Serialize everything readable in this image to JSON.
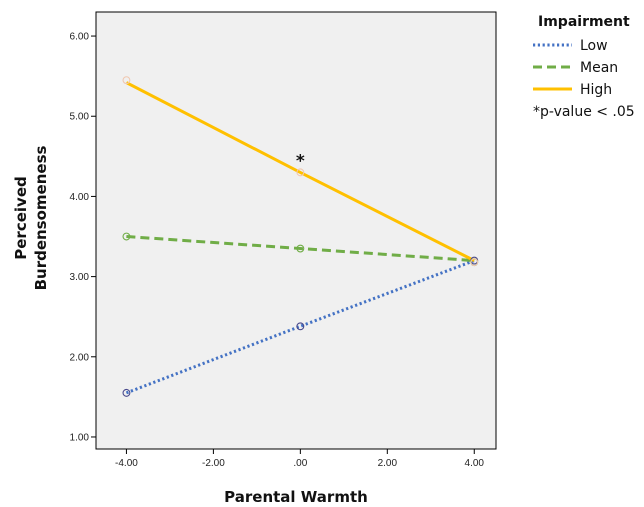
{
  "chart_data": {
    "type": "line",
    "title": "",
    "xlabel": "Parental Warmth",
    "ylabel": [
      "Perceived",
      "Burdensomeness"
    ],
    "xlim": [
      -4.7,
      4.5
    ],
    "ylim": [
      0.85,
      6.3
    ],
    "x_ticks": [
      -4,
      -2,
      0,
      2,
      4
    ],
    "x_tick_labels": [
      "-4.00",
      "-2.00",
      ".00",
      "2.00",
      "4.00"
    ],
    "y_ticks": [
      1,
      2,
      3,
      4,
      5,
      6
    ],
    "y_tick_labels": [
      "1.00",
      "2.00",
      "3.00",
      "4.00",
      "5.00",
      "6.00"
    ],
    "grid": false,
    "legend": {
      "title": "Impairment",
      "placement": "right"
    },
    "annotation": "*p-value < .05",
    "significance_marker": {
      "text": "*",
      "series": "High",
      "x": 0,
      "y": 4.45
    },
    "series": [
      {
        "name": "Low",
        "style": "dotted",
        "color": "#4472C4",
        "marker_color": "#4a4a8c",
        "x": [
          -4,
          0,
          4
        ],
        "y": [
          1.55,
          2.38,
          3.2
        ]
      },
      {
        "name": "Mean",
        "style": "dashed",
        "color": "#70AD47",
        "marker_color": "#70AD47",
        "x": [
          -4,
          0,
          4
        ],
        "y": [
          3.5,
          3.35,
          3.2
        ]
      },
      {
        "name": "High",
        "style": "solid",
        "color": "#FFC000",
        "marker_color": "#f0c8b0",
        "x": [
          -4,
          0,
          4
        ],
        "y": [
          5.42,
          4.3,
          3.2
        ]
      }
    ],
    "observed_markers": [
      {
        "series": "Low",
        "x": [
          -4,
          0,
          4
        ],
        "y": [
          1.55,
          2.38,
          3.2
        ]
      },
      {
        "series": "Mean",
        "x": [
          -4,
          0,
          4
        ],
        "y": [
          3.5,
          3.35,
          3.18
        ]
      },
      {
        "series": "High",
        "x": [
          -4,
          0,
          4
        ],
        "y": [
          5.45,
          4.3,
          3.18
        ]
      }
    ],
    "plot_background": "#f0f0f0"
  }
}
